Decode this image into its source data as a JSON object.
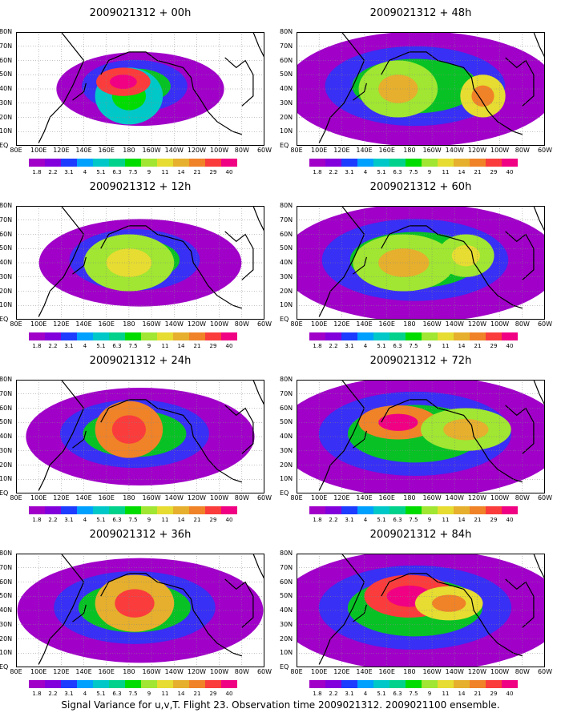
{
  "panels": [
    {
      "title": "2009021312 + 00h",
      "hotspots": [
        {
          "lon": 180,
          "lat": 35,
          "w": 30,
          "h": 20,
          "level": 0.35
        },
        {
          "lon": 175,
          "lat": 45,
          "w": 24,
          "h": 10,
          "level": 0.95
        }
      ],
      "coverage": 0.25
    },
    {
      "title": "2009021312 + 48h",
      "hotspots": [
        {
          "lon": 170,
          "lat": 40,
          "w": 35,
          "h": 20,
          "level": 0.6
        },
        {
          "lon": 245,
          "lat": 35,
          "w": 20,
          "h": 15,
          "level": 0.7
        }
      ],
      "coverage": 0.85
    },
    {
      "title": "2009021312 + 12h",
      "hotspots": [
        {
          "lon": 180,
          "lat": 40,
          "w": 40,
          "h": 20,
          "level": 0.55
        }
      ],
      "coverage": 0.45
    },
    {
      "title": "2009021312 + 60h",
      "hotspots": [
        {
          "lon": 175,
          "lat": 40,
          "w": 45,
          "h": 20,
          "level": 0.6
        },
        {
          "lon": 230,
          "lat": 45,
          "w": 25,
          "h": 15,
          "level": 0.55
        }
      ],
      "coverage": 0.9
    },
    {
      "title": "2009021312 + 24h",
      "hotspots": [
        {
          "lon": 180,
          "lat": 45,
          "w": 30,
          "h": 20,
          "level": 0.8
        }
      ],
      "coverage": 0.6
    },
    {
      "title": "2009021312 + 72h",
      "hotspots": [
        {
          "lon": 170,
          "lat": 50,
          "w": 35,
          "h": 12,
          "level": 0.85
        },
        {
          "lon": 230,
          "lat": 45,
          "w": 40,
          "h": 15,
          "level": 0.6
        }
      ],
      "coverage": 0.95
    },
    {
      "title": "2009021312 + 36h",
      "hotspots": [
        {
          "lon": 185,
          "lat": 45,
          "w": 35,
          "h": 20,
          "level": 0.75
        }
      ],
      "coverage": 0.7
    },
    {
      "title": "2009021312 + 84h",
      "hotspots": [
        {
          "lon": 180,
          "lat": 50,
          "w": 40,
          "h": 15,
          "level": 0.9
        },
        {
          "lon": 215,
          "lat": 45,
          "w": 30,
          "h": 12,
          "level": 0.7
        }
      ],
      "coverage": 0.95
    }
  ],
  "lat_labels": [
    "80N",
    "70N",
    "60N",
    "50N",
    "40N",
    "30N",
    "20N",
    "10N",
    "EQ"
  ],
  "lon_labels": [
    "80E",
    "100E",
    "120E",
    "140E",
    "160E",
    "180",
    "160W",
    "140W",
    "120W",
    "100W",
    "80W",
    "60W"
  ],
  "colorbar": {
    "labels": [
      "1.8",
      "2.2",
      "3.1",
      "4",
      "5.1",
      "6.3",
      "7.5",
      "9",
      "11",
      "14",
      "21",
      "29",
      "40",
      ""
    ],
    "colors": [
      "#a000c8",
      "#8200dc",
      "#1e3cff",
      "#00a0ff",
      "#00c8c8",
      "#00d28c",
      "#00dc00",
      "#a0e632",
      "#e6dc32",
      "#e6af2d",
      "#f08228",
      "#fa3c3c",
      "#f00082",
      "#f0f0f0"
    ]
  },
  "caption": "Signal Variance for u,v,T. Flight 23. Observation time 2009021312. 2009021100 ensemble."
}
